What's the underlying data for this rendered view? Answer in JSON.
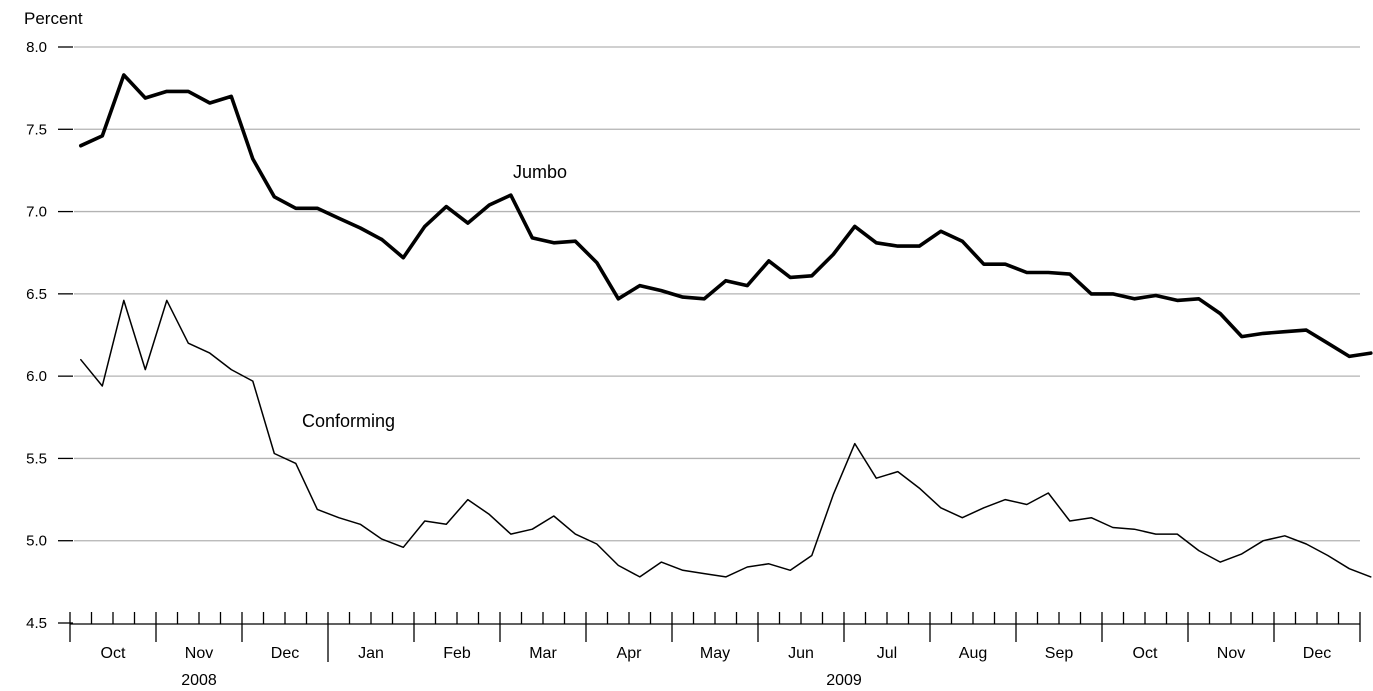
{
  "chart_data": {
    "type": "line",
    "ylabel": "Percent",
    "ylim": [
      4.5,
      8.0
    ],
    "yticks": [
      "4.5",
      "5.0",
      "5.5",
      "6.0",
      "6.5",
      "7.0",
      "7.5",
      "8.0"
    ],
    "grid": true,
    "months": [
      "Oct",
      "Nov",
      "Dec",
      "Jan",
      "Feb",
      "Mar",
      "Apr",
      "May",
      "Jun",
      "Jul",
      "Aug",
      "Sep",
      "Oct",
      "Nov",
      "Dec"
    ],
    "years": [
      "2008",
      "2009"
    ],
    "weeks_per_month": [
      4,
      4,
      4,
      4,
      4,
      4,
      4,
      4,
      4,
      4,
      4,
      4,
      4,
      4,
      4
    ],
    "series": [
      {
        "name": "Jumbo",
        "style": "thick",
        "values": [
          7.4,
          7.46,
          7.83,
          7.69,
          7.73,
          7.73,
          7.66,
          7.7,
          7.32,
          7.09,
          7.02,
          7.02,
          6.96,
          6.9,
          6.83,
          6.72,
          6.91,
          7.03,
          6.93,
          7.04,
          7.1,
          6.84,
          6.81,
          6.82,
          6.69,
          6.47,
          6.55,
          6.52,
          6.48,
          6.47,
          6.58,
          6.55,
          6.7,
          6.6,
          6.61,
          6.74,
          6.91,
          6.81,
          6.79,
          6.79,
          6.88,
          6.82,
          6.68,
          6.68,
          6.63,
          6.63,
          6.62,
          6.5,
          6.5,
          6.47,
          6.49,
          6.46,
          6.47,
          6.38,
          6.24,
          6.26,
          6.27,
          6.28,
          6.2,
          6.12,
          6.14
        ]
      },
      {
        "name": "Conforming",
        "style": "thin",
        "values": [
          6.1,
          5.94,
          6.46,
          6.04,
          6.46,
          6.2,
          6.14,
          6.04,
          5.97,
          5.53,
          5.47,
          5.19,
          5.14,
          5.1,
          5.01,
          4.96,
          5.12,
          5.1,
          5.25,
          5.16,
          5.04,
          5.07,
          5.15,
          5.04,
          4.98,
          4.85,
          4.78,
          4.87,
          4.82,
          4.8,
          4.78,
          4.84,
          4.86,
          4.82,
          4.91,
          5.28,
          5.59,
          5.38,
          5.42,
          5.32,
          5.2,
          5.14,
          5.2,
          5.25,
          5.22,
          5.29,
          5.12,
          5.14,
          5.08,
          5.07,
          5.04,
          5.04,
          4.94,
          4.87,
          4.92,
          5.0,
          5.03,
          4.98,
          4.91,
          4.83,
          4.78
        ]
      }
    ]
  }
}
